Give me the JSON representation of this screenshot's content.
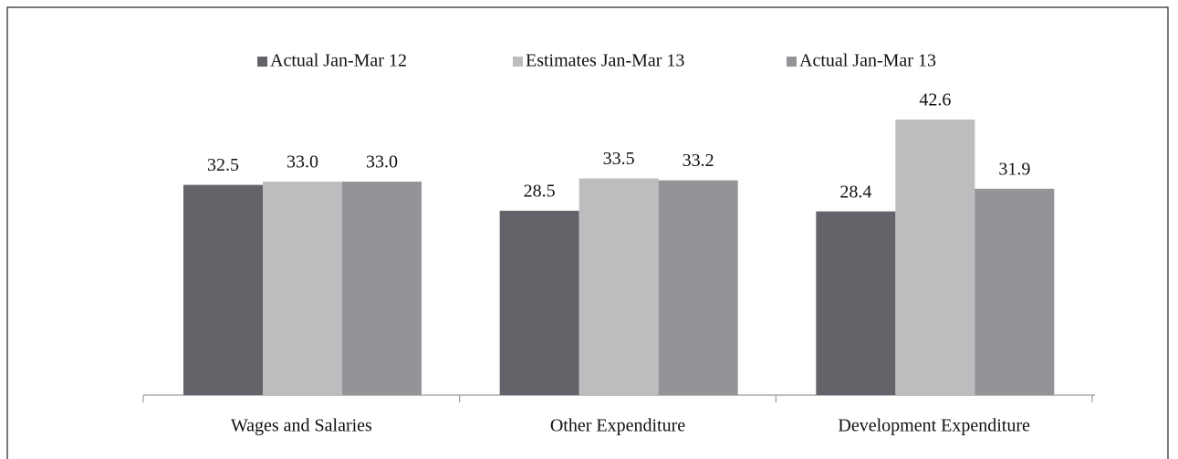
{
  "chart_data": {
    "type": "bar",
    "categories": [
      "Wages and Salaries",
      "Other Expenditure",
      "Development Expenditure"
    ],
    "series": [
      {
        "name": "Actual Jan-Mar 12",
        "color": "#636369",
        "values": [
          32.5,
          28.5,
          28.4
        ],
        "value_labels": [
          "32.5",
          "28.5",
          "28.4"
        ]
      },
      {
        "name": "Estimates Jan-Mar 13",
        "color": "#bdbdc0",
        "values": [
          33.0,
          33.5,
          42.6
        ],
        "value_labels": [
          "33.0",
          "33.5",
          "42.6"
        ]
      },
      {
        "name": "Actual Jan-Mar 13",
        "color": "#949498",
        "values": [
          33.0,
          33.2,
          31.9
        ],
        "value_labels": [
          "33.0",
          "33.2",
          "31.9"
        ]
      }
    ],
    "legend": "top"
  }
}
